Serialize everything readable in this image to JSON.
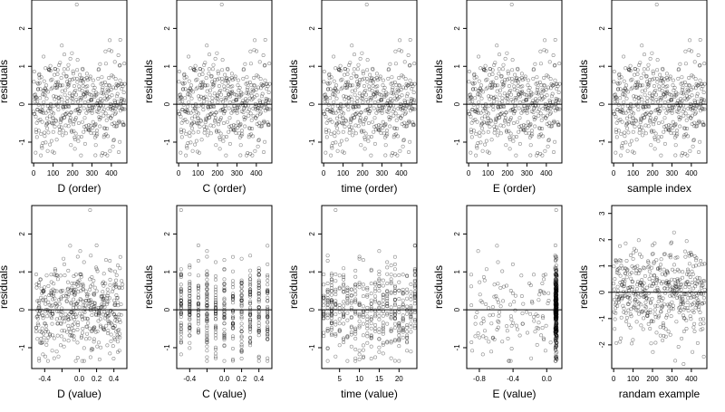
{
  "chart_data": [
    {
      "type": "scatter",
      "xlabel": "D (order)",
      "ylabel": "residuals",
      "xlim": [
        -10,
        480
      ],
      "ylim": [
        -1.55,
        2.75
      ],
      "xticks": [
        0,
        100,
        200,
        300,
        400
      ],
      "xtick_labels": [
        "0",
        "100",
        "200",
        "300",
        "400"
      ],
      "yticks": [
        -1,
        0,
        1,
        2
      ],
      "ytick_labels": [
        "-1",
        "0",
        "1",
        "2"
      ],
      "hline": 0,
      "x_mode": "index"
    },
    {
      "type": "scatter",
      "xlabel": "C (order)",
      "ylabel": "residuals",
      "xlim": [
        -10,
        480
      ],
      "ylim": [
        -1.55,
        2.75
      ],
      "xticks": [
        0,
        100,
        200,
        300,
        400
      ],
      "xtick_labels": [
        "0",
        "100",
        "200",
        "300",
        "400"
      ],
      "yticks": [
        -1,
        0,
        1,
        2
      ],
      "ytick_labels": [
        "-1",
        "0",
        "1",
        "2"
      ],
      "hline": 0,
      "x_mode": "index"
    },
    {
      "type": "scatter",
      "xlabel": "time (order)",
      "ylabel": "residuals",
      "xlim": [
        -10,
        480
      ],
      "ylim": [
        -1.55,
        2.75
      ],
      "xticks": [
        0,
        100,
        200,
        300,
        400
      ],
      "xtick_labels": [
        "0",
        "100",
        "200",
        "300",
        "400"
      ],
      "yticks": [
        -1,
        0,
        1,
        2
      ],
      "ytick_labels": [
        "-1",
        "0",
        "1",
        "2"
      ],
      "hline": 0,
      "x_mode": "index"
    },
    {
      "type": "scatter",
      "xlabel": "E (order)",
      "ylabel": "residuals",
      "xlim": [
        -10,
        480
      ],
      "ylim": [
        -1.55,
        2.75
      ],
      "xticks": [
        0,
        100,
        200,
        300,
        400
      ],
      "xtick_labels": [
        "0",
        "100",
        "200",
        "300",
        "400"
      ],
      "yticks": [
        -1,
        0,
        1,
        2
      ],
      "ytick_labels": [
        "-1",
        "0",
        "1",
        "2"
      ],
      "hline": 0,
      "x_mode": "index"
    },
    {
      "type": "scatter",
      "xlabel": "sample index",
      "ylabel": "residuals",
      "xlim": [
        -10,
        480
      ],
      "ylim": [
        -1.55,
        2.75
      ],
      "xticks": [
        0,
        100,
        200,
        300,
        400
      ],
      "xtick_labels": [
        "0",
        "100",
        "200",
        "300",
        "400"
      ],
      "yticks": [
        -1,
        0,
        1,
        2
      ],
      "ytick_labels": [
        "-1",
        "0",
        "1",
        "2"
      ],
      "hline": 0,
      "x_mode": "index"
    },
    {
      "type": "scatter",
      "xlabel": "D (value)",
      "ylabel": "residuals",
      "xlim": [
        -0.55,
        0.55
      ],
      "ylim": [
        -1.55,
        2.75
      ],
      "xticks": [
        -0.4,
        -0.2,
        0,
        0.2,
        0.4
      ],
      "xtick_labels": [
        "-0.4",
        "",
        "0.0",
        "0.2",
        "0.4"
      ],
      "yticks": [
        -1,
        0,
        1,
        2
      ],
      "ytick_labels": [
        "-1",
        "0",
        "1",
        "2"
      ],
      "hline": 0,
      "x_mode": "uniform",
      "x_range": [
        -0.5,
        0.5
      ]
    },
    {
      "type": "scatter",
      "xlabel": "C (value)",
      "ylabel": "residuals",
      "xlim": [
        -0.55,
        0.55
      ],
      "ylim": [
        -1.55,
        2.75
      ],
      "xticks": [
        -0.4,
        -0.2,
        0,
        0.2,
        0.4
      ],
      "xtick_labels": [
        "-0.4",
        "",
        "0.0",
        "0.2",
        "0.4"
      ],
      "yticks": [
        -1,
        0,
        1,
        2
      ],
      "ytick_labels": [
        "-1",
        "0",
        "1",
        "2"
      ],
      "hline": 0,
      "x_mode": "levels",
      "x_levels": [
        -0.5,
        -0.4,
        -0.3,
        -0.2,
        -0.1,
        0,
        0.1,
        0.2,
        0.3,
        0.4,
        0.5
      ]
    },
    {
      "type": "scatter",
      "xlabel": "time (value)",
      "ylabel": "residuals",
      "xlim": [
        0.5,
        24.5
      ],
      "ylim": [
        -1.55,
        2.75
      ],
      "xticks": [
        5,
        10,
        15,
        20
      ],
      "xtick_labels": [
        "5",
        "10",
        "15",
        "20"
      ],
      "yticks": [
        -1,
        0,
        1,
        2
      ],
      "ytick_labels": [
        "-1",
        "0",
        "1",
        "2"
      ],
      "hline": 0,
      "x_mode": "levels",
      "x_levels": [
        1,
        2,
        3,
        4,
        5,
        6,
        7,
        8,
        9,
        10,
        11,
        12,
        13,
        14,
        15,
        16,
        17,
        18,
        19,
        20,
        21,
        22,
        23,
        24
      ]
    },
    {
      "type": "scatter",
      "xlabel": "E (value)",
      "ylabel": "residuals",
      "xlim": [
        -0.95,
        0.18
      ],
      "ylim": [
        -1.55,
        2.75
      ],
      "xticks": [
        -0.8,
        -0.4,
        0
      ],
      "xtick_labels": [
        "-0.8",
        "-0.4",
        "0.0"
      ],
      "yticks": [
        -1,
        0,
        1,
        2
      ],
      "ytick_labels": [
        "-1",
        "0",
        "1",
        "2"
      ],
      "hline": 0,
      "x_mode": "skewed",
      "x_range": [
        -0.9,
        0.12
      ]
    },
    {
      "type": "scatter",
      "xlabel": "randam example",
      "ylabel": "residuals",
      "xlim": [
        -10,
        480
      ],
      "ylim": [
        -2.9,
        3.3
      ],
      "xticks": [
        0,
        100,
        200,
        300,
        400
      ],
      "xtick_labels": [
        "0",
        "100",
        "200",
        "300",
        "400"
      ],
      "yticks": [
        -2,
        -1,
        0,
        1,
        2,
        3
      ],
      "ytick_labels": [
        "-2",
        "-1",
        "0",
        "1",
        "2",
        "3"
      ],
      "hline": 0,
      "x_mode": "index",
      "y_scale": 1.4
    }
  ]
}
